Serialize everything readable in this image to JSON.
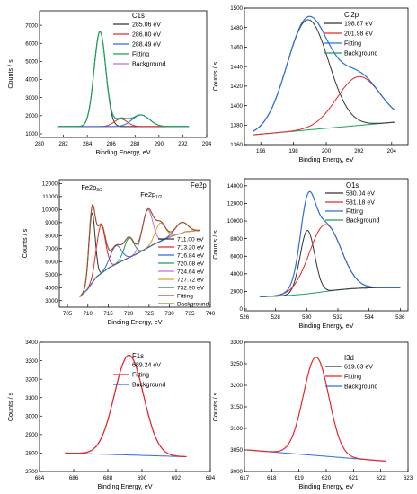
{
  "figure": {
    "x_title": "Binding Energy, eV",
    "y_title": "Counts / s"
  },
  "chart_data": [
    {
      "id": "c1s",
      "type": "line",
      "title": "C1s",
      "xlim": [
        280,
        294
      ],
      "ylim": [
        800,
        7800
      ],
      "xticks": [
        280,
        282,
        284,
        286,
        288,
        290,
        292,
        294
      ],
      "yticks": [
        1000,
        2000,
        3000,
        4000,
        5000,
        6000,
        7000
      ],
      "legend_placement": "top-right",
      "peaks": [
        {
          "name": "285.06 eV",
          "color": "#333333",
          "center": 285.06,
          "height": 5260,
          "fwhm": 1.15
        },
        {
          "name": "286.80 eV",
          "color": "#e8262a",
          "center": 286.8,
          "height": 420,
          "fwhm": 1.3
        },
        {
          "name": "288.49 eV",
          "color": "#2b6fd6",
          "center": 288.49,
          "height": 640,
          "fwhm": 1.7
        }
      ],
      "baseline": {
        "x": [
          281.5,
          292.5
        ],
        "y": [
          1400,
          1400
        ]
      },
      "fitting": {
        "name": "Fitting",
        "color": "#18a35a"
      },
      "background": {
        "name": "Background",
        "color": "#c070d8"
      }
    },
    {
      "id": "cl2p",
      "type": "line",
      "title": "Cl2p",
      "xlim": [
        195,
        205
      ],
      "ylim": [
        1360,
        1500
      ],
      "xticks": [
        196,
        198,
        200,
        202,
        204
      ],
      "yticks": [
        1360,
        1380,
        1400,
        1420,
        1440,
        1460,
        1480,
        1500
      ],
      "legend_placement": "top-right",
      "peaks": [
        {
          "name": "198.87 eV",
          "color": "#333333",
          "center": 198.87,
          "height": 113,
          "fwhm": 3.0
        },
        {
          "name": "201.98 eV",
          "color": "#e8262a",
          "center": 201.98,
          "height": 50,
          "fwhm": 3.1
        }
      ],
      "baseline": {
        "x": [
          195.5,
          204.2
        ],
        "y": [
          1370,
          1383
        ]
      },
      "fitting": {
        "name": "Fitting",
        "color": "#2b6fd6"
      },
      "background": {
        "name": "Background",
        "color": "#18a35a"
      }
    },
    {
      "id": "fe2p",
      "type": "line",
      "title": "Fe2p",
      "xlim": [
        703,
        740
      ],
      "ylim": [
        2500,
        12300
      ],
      "xticks": [
        705,
        710,
        715,
        720,
        725,
        730,
        735,
        740
      ],
      "yticks": [
        3000,
        4000,
        5000,
        6000,
        7000,
        8000,
        9000,
        10000,
        11000,
        12000
      ],
      "legend_placement": "right",
      "annotations": [
        {
          "text": "Fe2p",
          "sub": "3/2",
          "x": 711.0,
          "y": 11550
        },
        {
          "text": "Fe2p",
          "sub": "1/2",
          "x": 725.5,
          "y": 11000
        }
      ],
      "peaks": [
        {
          "name": "711.00 eV",
          "color": "#333333",
          "center": 711.0,
          "height": 5400,
          "fwhm": 1.8
        },
        {
          "name": "713.20 eV",
          "color": "#e8262a",
          "center": 713.2,
          "height": 3700,
          "fwhm": 2.6
        },
        {
          "name": "716.84 eV",
          "color": "#2b6fd6",
          "center": 716.84,
          "height": 1400,
          "fwhm": 3.2
        },
        {
          "name": "720.08 eV",
          "color": "#18a35a",
          "center": 720.08,
          "height": 1500,
          "fwhm": 2.8
        },
        {
          "name": "724.64 eV",
          "color": "#c070d8",
          "center": 724.64,
          "height": 2900,
          "fwhm": 3.0
        },
        {
          "name": "727.72 eV",
          "color": "#e0a020",
          "center": 727.72,
          "height": 1400,
          "fwhm": 3.0
        },
        {
          "name": "732.90 eV",
          "color": "#3a60b0",
          "center": 732.9,
          "height": 820,
          "fwhm": 3.5
        }
      ],
      "baseline": {
        "x": [
          708,
          710,
          712,
          715,
          718,
          722,
          726,
          730,
          734,
          737.5
        ],
        "y": [
          3300,
          3900,
          4800,
          5500,
          6000,
          6600,
          7300,
          7900,
          8300,
          8400
        ]
      },
      "fitting": {
        "name": "Fitting",
        "color": "#a0522d"
      },
      "background": {
        "name": "Background",
        "color": "#8c8c1a"
      }
    },
    {
      "id": "o1s",
      "type": "line",
      "title": "O1s",
      "xlim": [
        526,
        536.5
      ],
      "ylim": [
        -200,
        14800
      ],
      "xticks": [
        526,
        528,
        530,
        532,
        534,
        536
      ],
      "yticks": [
        0,
        2000,
        4000,
        6000,
        8000,
        10000,
        12000,
        14000
      ],
      "legend_placement": "top-right",
      "peaks": [
        {
          "name": "530.04 eV",
          "color": "#333333",
          "center": 530.04,
          "height": 7200,
          "fwhm": 1.1
        },
        {
          "name": "531.18 eV",
          "color": "#e8262a",
          "center": 531.18,
          "height": 7600,
          "fwhm": 2.4
        }
      ],
      "baseline": {
        "x": [
          527,
          528,
          529,
          530,
          531,
          532,
          533,
          534,
          535,
          536
        ],
        "y": [
          1400,
          1460,
          1560,
          1720,
          1950,
          2180,
          2330,
          2400,
          2420,
          2420
        ]
      },
      "fitting": {
        "name": "Fitting",
        "color": "#2b6fd6"
      },
      "background": {
        "name": "Background",
        "color": "#18a35a"
      }
    },
    {
      "id": "f1s",
      "type": "line",
      "title": "F1s",
      "xlim": [
        684,
        694
      ],
      "ylim": [
        2700,
        3400
      ],
      "xticks": [
        684,
        686,
        688,
        690,
        692,
        694
      ],
      "yticks": [
        2700,
        2800,
        2900,
        3000,
        3100,
        3200,
        3300,
        3400
      ],
      "legend_placement": "top-right",
      "peaks": [
        {
          "name": "689.24 eV",
          "color": "#e8262a",
          "center": 689.24,
          "height": 540,
          "fwhm": 2.0,
          "legend_swatch": false
        }
      ],
      "baseline": {
        "x": [
          685.5,
          692.6
        ],
        "y": [
          2800,
          2780
        ]
      },
      "fitting": {
        "name": "Fitting",
        "color": "#e8262a"
      },
      "background": {
        "name": "Background",
        "color": "#2b6fd6"
      }
    },
    {
      "id": "i3d",
      "type": "line",
      "title": "I3d",
      "xlim": [
        617,
        623
      ],
      "ylim": [
        3000,
        3300
      ],
      "xticks": [
        617,
        618,
        619,
        620,
        621,
        622,
        623
      ],
      "yticks": [
        3000,
        3050,
        3100,
        3150,
        3200,
        3250,
        3300
      ],
      "legend_placement": "top-right",
      "peaks": [
        {
          "name": "619.63 eV",
          "color": "#333333",
          "center": 619.63,
          "height": 228,
          "fwhm": 1.1,
          "legend_swatch": true,
          "hidden_curve": true
        }
      ],
      "baseline": {
        "x": [
          617.1,
          622.2
        ],
        "y": [
          3050,
          3024
        ]
      },
      "fitting": {
        "name": "Fitting",
        "color": "#e8262a"
      },
      "background": {
        "name": "Background",
        "color": "#2b6fd6"
      }
    }
  ]
}
